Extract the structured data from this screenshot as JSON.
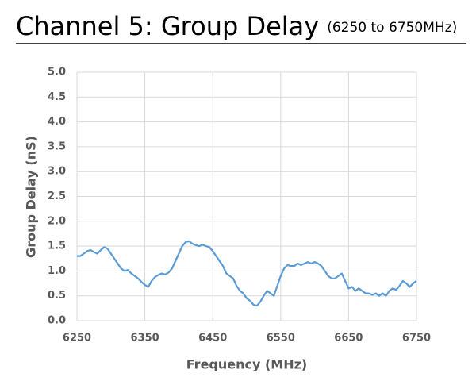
{
  "chart_data": {
    "type": "line",
    "title": "Channel 5: Group Delay",
    "subtitle": "(6250 to 6750MHz)",
    "x_label": "Frequency (MHz)",
    "y_label": "Group Delay (nS)",
    "color": "#5b9bd5",
    "grid": true,
    "xlim": [
      6250,
      6750
    ],
    "xticks": [
      6250,
      6350,
      6450,
      6550,
      6650,
      6750
    ],
    "ylim": [
      0,
      5
    ],
    "yticks": [
      {
        "value": 0,
        "label": "0.0"
      },
      0.5,
      {
        "value": 1,
        "label": "1.0"
      },
      1.5,
      {
        "value": 2,
        "label": "2.0"
      },
      2.5,
      {
        "value": 3,
        "label": "3.0"
      },
      3.5,
      {
        "value": 4,
        "label": "4.0"
      },
      4.5,
      {
        "value": 5,
        "label": "5.0"
      }
    ],
    "x": [
      6250,
      6255,
      6260,
      6265,
      6270,
      6275,
      6280,
      6285,
      6290,
      6295,
      6300,
      6305,
      6310,
      6315,
      6320,
      6325,
      6330,
      6335,
      6340,
      6345,
      6350,
      6355,
      6360,
      6365,
      6370,
      6375,
      6380,
      6385,
      6390,
      6395,
      6400,
      6405,
      6410,
      6415,
      6420,
      6425,
      6430,
      6435,
      6440,
      6445,
      6450,
      6455,
      6460,
      6465,
      6470,
      6475,
      6480,
      6485,
      6490,
      6495,
      6500,
      6505,
      6510,
      6515,
      6520,
      6525,
      6530,
      6535,
      6540,
      6545,
      6550,
      6555,
      6560,
      6565,
      6570,
      6575,
      6580,
      6585,
      6590,
      6595,
      6600,
      6605,
      6610,
      6615,
      6620,
      6625,
      6630,
      6635,
      6640,
      6645,
      6650,
      6655,
      6660,
      6665,
      6670,
      6675,
      6680,
      6685,
      6690,
      6695,
      6700,
      6705,
      6710,
      6715,
      6720,
      6725,
      6730,
      6735,
      6740,
      6745,
      6750
    ],
    "values": [
      1.3,
      1.3,
      1.35,
      1.4,
      1.42,
      1.38,
      1.35,
      1.42,
      1.48,
      1.45,
      1.35,
      1.25,
      1.15,
      1.05,
      1.0,
      1.02,
      0.95,
      0.9,
      0.85,
      0.78,
      0.72,
      0.68,
      0.8,
      0.88,
      0.92,
      0.95,
      0.93,
      0.97,
      1.05,
      1.2,
      1.35,
      1.5,
      1.58,
      1.6,
      1.55,
      1.52,
      1.5,
      1.53,
      1.5,
      1.48,
      1.4,
      1.3,
      1.2,
      1.1,
      0.95,
      0.9,
      0.85,
      0.7,
      0.6,
      0.55,
      0.45,
      0.4,
      0.32,
      0.3,
      0.38,
      0.5,
      0.6,
      0.55,
      0.5,
      0.7,
      0.9,
      1.05,
      1.12,
      1.1,
      1.1,
      1.15,
      1.12,
      1.15,
      1.18,
      1.15,
      1.18,
      1.15,
      1.1,
      1.0,
      0.9,
      0.85,
      0.85,
      0.9,
      0.95,
      0.8,
      0.65,
      0.68,
      0.6,
      0.65,
      0.6,
      0.55,
      0.55,
      0.52,
      0.55,
      0.5,
      0.55,
      0.5,
      0.6,
      0.65,
      0.62,
      0.7,
      0.8,
      0.75,
      0.68,
      0.75,
      0.8
    ]
  }
}
